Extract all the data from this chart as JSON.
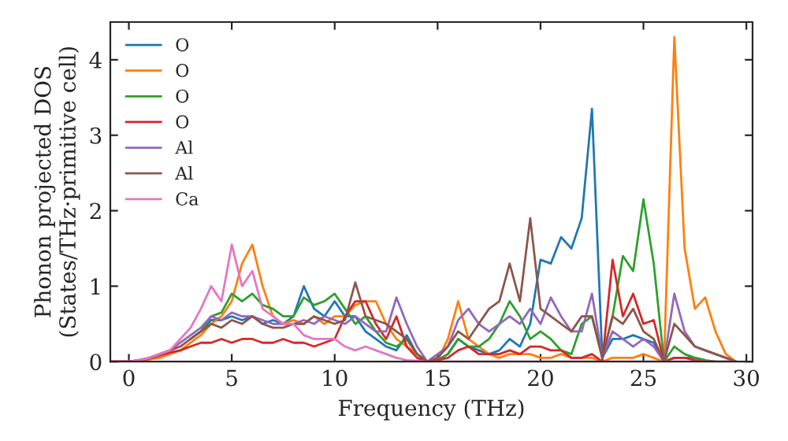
{
  "chart_data": {
    "type": "line",
    "xlabel": "Frequency (THz)",
    "ylabel": "Phonon projected DOS\n(States/THz·primitive cell)",
    "x": [
      -0.9,
      0,
      0.5,
      1,
      1.5,
      2,
      2.5,
      3,
      3.5,
      4,
      4.5,
      5,
      5.5,
      6,
      6.5,
      7,
      7.5,
      8,
      8.5,
      9,
      9.5,
      10,
      10.5,
      11,
      11.5,
      12,
      12.5,
      13,
      13.5,
      14,
      14.5,
      15,
      15.5,
      16,
      16.5,
      17,
      17.5,
      18,
      18.5,
      19,
      19.5,
      20,
      20.5,
      21,
      21.5,
      22,
      22.5,
      23,
      23.5,
      24,
      24.5,
      25,
      25.5,
      26,
      26.5,
      27,
      27.5,
      28,
      28.5,
      29,
      29.5
    ],
    "series": [
      {
        "name": "O",
        "color": "#1f77b4",
        "values": [
          null,
          null,
          null,
          null,
          null,
          null,
          null,
          0.3,
          0.4,
          0.55,
          0.55,
          0.6,
          0.55,
          0.6,
          0.5,
          0.55,
          0.5,
          0.6,
          1.0,
          0.7,
          0.6,
          0.8,
          0.6,
          0.6,
          0.4,
          0.3,
          0.2,
          0.15,
          0.35,
          0.1,
          0,
          0.02,
          0.1,
          0.3,
          0.2,
          0.15,
          0.1,
          0.15,
          0.3,
          0.2,
          0.5,
          1.35,
          1.3,
          1.65,
          1.5,
          1.9,
          3.35,
          0.05,
          0.3,
          0.3,
          0.35,
          0.3,
          0.25,
          0,
          0.05,
          0.05,
          0.05,
          0.02,
          null,
          null,
          null
        ]
      },
      {
        "name": "O",
        "color": "#ff7f0e",
        "values": [
          0,
          0,
          0.01,
          0.03,
          0.05,
          0.1,
          0.15,
          0.25,
          0.35,
          0.5,
          0.6,
          0.8,
          1.3,
          1.55,
          1.0,
          0.6,
          0.5,
          0.55,
          0.5,
          0.6,
          0.5,
          0.6,
          0.6,
          0.75,
          0.8,
          0.8,
          0.5,
          0.3,
          0.2,
          0.1,
          0,
          0.02,
          0.3,
          0.8,
          0.3,
          0.2,
          0.1,
          0.05,
          0.1,
          0.1,
          0.1,
          0.05,
          0.05,
          0.1,
          0.05,
          0.05,
          0.05,
          0,
          0.05,
          0.05,
          0.05,
          0.1,
          0.05,
          0,
          4.3,
          1.5,
          0.7,
          0.85,
          0.4,
          0.1,
          0
        ]
      },
      {
        "name": "O",
        "color": "#2ca02c",
        "values": [
          null,
          null,
          null,
          null,
          null,
          null,
          null,
          0.3,
          0.4,
          0.6,
          0.65,
          0.9,
          0.8,
          0.9,
          0.75,
          0.7,
          0.6,
          0.6,
          0.85,
          0.75,
          0.8,
          0.9,
          0.7,
          0.5,
          0.6,
          0.4,
          0.25,
          0.2,
          0.3,
          0.1,
          0,
          0.02,
          0.1,
          0.3,
          0.2,
          0.2,
          0.3,
          0.5,
          0.8,
          0.6,
          0.3,
          0.4,
          0.3,
          0.15,
          0.1,
          0.5,
          0.6,
          0.05,
          0.6,
          1.4,
          1.2,
          2.15,
          1.3,
          0,
          0.2,
          0.1,
          0.05,
          0.02,
          0,
          0,
          0
        ]
      },
      {
        "name": "O",
        "color": "#d62728",
        "values": [
          0,
          0,
          0.02,
          0.04,
          0.08,
          0.12,
          0.15,
          0.2,
          0.25,
          0.25,
          0.3,
          0.25,
          0.3,
          0.3,
          0.25,
          0.25,
          0.3,
          0.25,
          0.25,
          0.2,
          0.25,
          0.3,
          0.6,
          0.8,
          0.8,
          0.5,
          0.3,
          0.6,
          0.2,
          0.05,
          0,
          0.02,
          0.05,
          0.15,
          0.2,
          0.1,
          0.1,
          0.1,
          0.15,
          0.1,
          0.2,
          0.2,
          0.15,
          0.15,
          0.05,
          0.05,
          0.1,
          0,
          1.35,
          0.6,
          0.9,
          0.5,
          0.55,
          0,
          0.05,
          0.05,
          0.02,
          0,
          0,
          null,
          null
        ]
      },
      {
        "name": "Al",
        "color": "#9467bd",
        "values": [
          0,
          0,
          0.02,
          0.05,
          0.1,
          0.15,
          0.25,
          0.35,
          0.45,
          0.6,
          0.55,
          0.65,
          0.6,
          0.6,
          0.55,
          0.5,
          0.5,
          0.5,
          0.55,
          0.5,
          0.6,
          0.55,
          0.5,
          0.6,
          0.5,
          0.4,
          0.4,
          0.85,
          0.5,
          0.2,
          0,
          0.1,
          0.2,
          0.55,
          0.7,
          0.5,
          0.4,
          0.5,
          0.6,
          0.5,
          0.7,
          0.5,
          0.85,
          0.6,
          0.4,
          0.4,
          0.9,
          0.05,
          0.4,
          0.3,
          0.2,
          0.3,
          0.2,
          0,
          0.9,
          0.4,
          0.2,
          0.15,
          0.1,
          0.05,
          0
        ]
      },
      {
        "name": "Al",
        "color": "#8c564b",
        "values": [
          0,
          0,
          0.02,
          0.05,
          0.1,
          0.15,
          0.2,
          0.3,
          0.4,
          0.5,
          0.45,
          0.55,
          0.5,
          0.6,
          0.5,
          0.45,
          0.45,
          0.5,
          0.5,
          0.6,
          0.55,
          0.5,
          0.55,
          1.05,
          0.6,
          0.55,
          0.5,
          0.4,
          0.3,
          0.1,
          0,
          0.05,
          0.2,
          0.4,
          0.3,
          0.5,
          0.7,
          0.8,
          1.3,
          0.8,
          1.9,
          0.7,
          0.6,
          0.5,
          0.4,
          0.6,
          0.6,
          0.05,
          0.6,
          0.5,
          0.7,
          0.4,
          0.3,
          0,
          0.5,
          0.35,
          0.2,
          0.15,
          0.1,
          0.05,
          0
        ]
      },
      {
        "name": "Ca",
        "color": "#e377c2",
        "values": [
          0,
          0,
          0.02,
          0.05,
          0.1,
          0.15,
          0.3,
          0.45,
          0.7,
          1.0,
          0.8,
          1.55,
          1.0,
          1.2,
          0.7,
          0.6,
          0.5,
          0.5,
          0.35,
          0.3,
          0.3,
          0.3,
          0.2,
          0.15,
          0.2,
          0.15,
          0.1,
          0.05,
          0.02,
          0.01,
          0,
          0,
          0,
          0,
          0,
          0,
          0,
          0,
          0,
          0,
          0,
          0,
          0,
          0,
          0,
          0,
          0,
          0,
          0,
          0,
          0,
          0,
          0,
          0,
          0,
          0,
          0,
          0,
          0,
          0,
          0
        ]
      }
    ],
    "xlim": [
      -0.9,
      30.3
    ],
    "ylim": [
      0,
      4.5
    ],
    "xticks": [
      0,
      5,
      10,
      15,
      20,
      25,
      30
    ],
    "yticks": [
      0,
      1,
      2,
      3,
      4
    ],
    "grid": false,
    "legend": "top left",
    "marker": "none",
    "line_style": "solid"
  }
}
